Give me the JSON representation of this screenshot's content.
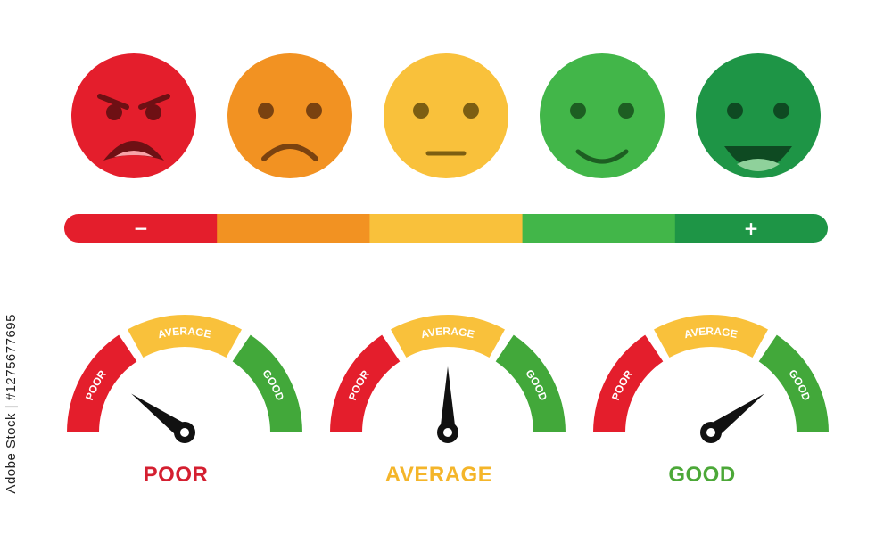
{
  "faces": [
    {
      "id": "angry",
      "color": "#e41e2c"
    },
    {
      "id": "sad",
      "color": "#f29222"
    },
    {
      "id": "neutral",
      "color": "#f9c13b"
    },
    {
      "id": "happy",
      "color": "#42b649"
    },
    {
      "id": "very-happy",
      "color": "#1e9546"
    }
  ],
  "scale_bar": {
    "colors": [
      "#e41e2c",
      "#f29222",
      "#f9c13b",
      "#42b649",
      "#1e9546"
    ],
    "minus_label": "−",
    "plus_label": "+"
  },
  "gauges": [
    {
      "name": "poor",
      "level": 0.2,
      "result_label": "POOR",
      "result_color": "#d41f30",
      "segments": [
        {
          "label": "POOR",
          "color": "#e41e2c"
        },
        {
          "label": "AVERAGE",
          "color": "#f9c13b"
        },
        {
          "label": "GOOD",
          "color": "#42a83a"
        }
      ]
    },
    {
      "name": "average",
      "level": 0.5,
      "result_label": "AVERAGE",
      "result_color": "#f4b52a",
      "segments": [
        {
          "label": "POOR",
          "color": "#e41e2c"
        },
        {
          "label": "AVERAGE",
          "color": "#f9c13b"
        },
        {
          "label": "GOOD",
          "color": "#42a83a"
        }
      ]
    },
    {
      "name": "good",
      "level": 0.8,
      "result_label": "GOOD",
      "result_color": "#4ca838",
      "segments": [
        {
          "label": "POOR",
          "color": "#e41e2c"
        },
        {
          "label": "AVERAGE",
          "color": "#f9c13b"
        },
        {
          "label": "GOOD",
          "color": "#42a83a"
        }
      ]
    }
  ],
  "stock_id": "Adobe Stock | #1275677695"
}
